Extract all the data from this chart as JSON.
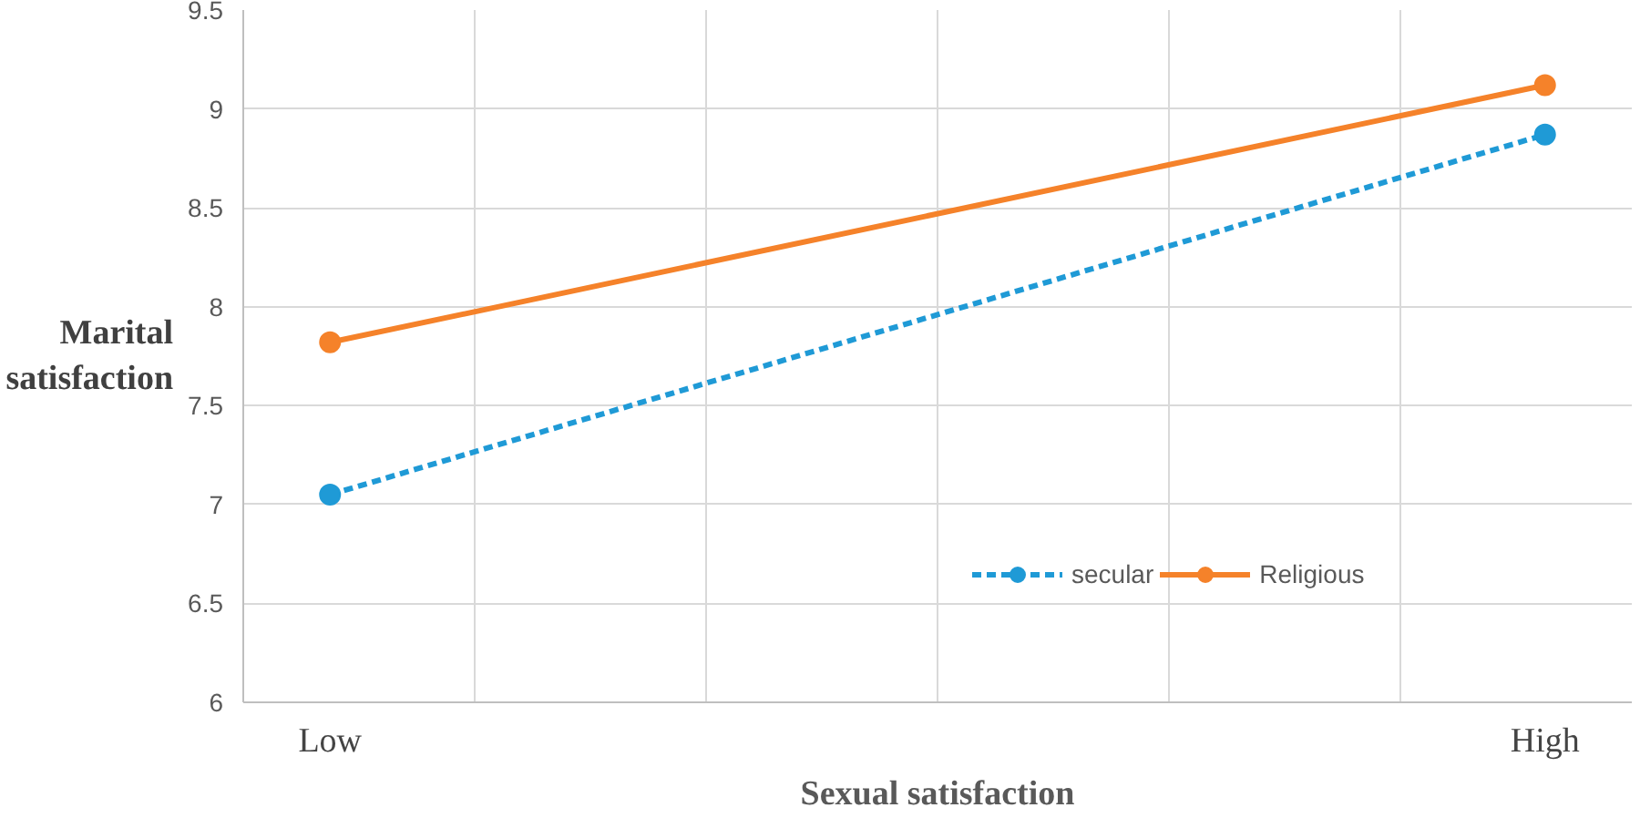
{
  "chart_data": {
    "type": "line",
    "xlabel": "Sexual satisfaction",
    "ylabel": "Marital\nsatisfaction",
    "categories": [
      "Low",
      null,
      null,
      null,
      null,
      null,
      null,
      "High"
    ],
    "series": [
      {
        "name": "secular",
        "color": "#1f9ad6",
        "values": [
          7.05,
          null,
          null,
          null,
          null,
          null,
          null,
          8.87
        ],
        "line_style": "dashed"
      },
      {
        "name": "Religious",
        "color": "#f5822a",
        "values": [
          7.82,
          null,
          null,
          null,
          null,
          null,
          null,
          9.12
        ],
        "line_style": "solid"
      }
    ],
    "ylim": [
      6,
      9.5
    ],
    "yticks": [
      6,
      6.5,
      7,
      7.5,
      8,
      8.5,
      9,
      9.5
    ],
    "grid": true,
    "legend": "bottom right",
    "marker": "circle"
  }
}
